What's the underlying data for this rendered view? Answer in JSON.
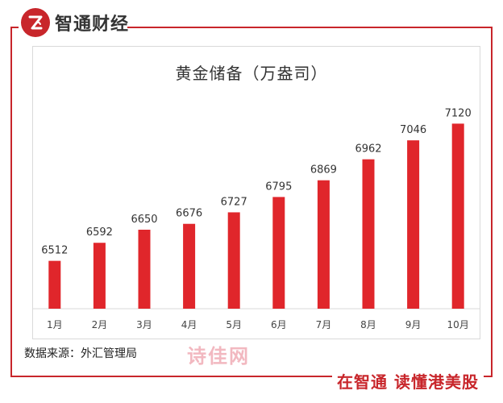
{
  "brand": {
    "name": "智通财经",
    "slogan": "在智通 读懂港美股",
    "watermark": "诗佳网",
    "accent_color": "#c8262b"
  },
  "source": "数据来源：外汇管理局",
  "chart_data": {
    "type": "bar",
    "title": "黄金储备（万盎司）",
    "categories": [
      "1月",
      "2月",
      "3月",
      "4月",
      "5月",
      "6月",
      "7月",
      "8月",
      "9月",
      "10月"
    ],
    "values": [
      6512,
      6592,
      6650,
      6676,
      6727,
      6795,
      6869,
      6962,
      7046,
      7120
    ],
    "value_labels": [
      "6512",
      "6592",
      "6650",
      "6676",
      "6727",
      "6795",
      "6869",
      "6962",
      "7046",
      "7120"
    ],
    "xlabel": "",
    "ylabel": "",
    "ylim": [
      6300,
      7150
    ],
    "grid": false,
    "bar_color": "#e0262b"
  }
}
